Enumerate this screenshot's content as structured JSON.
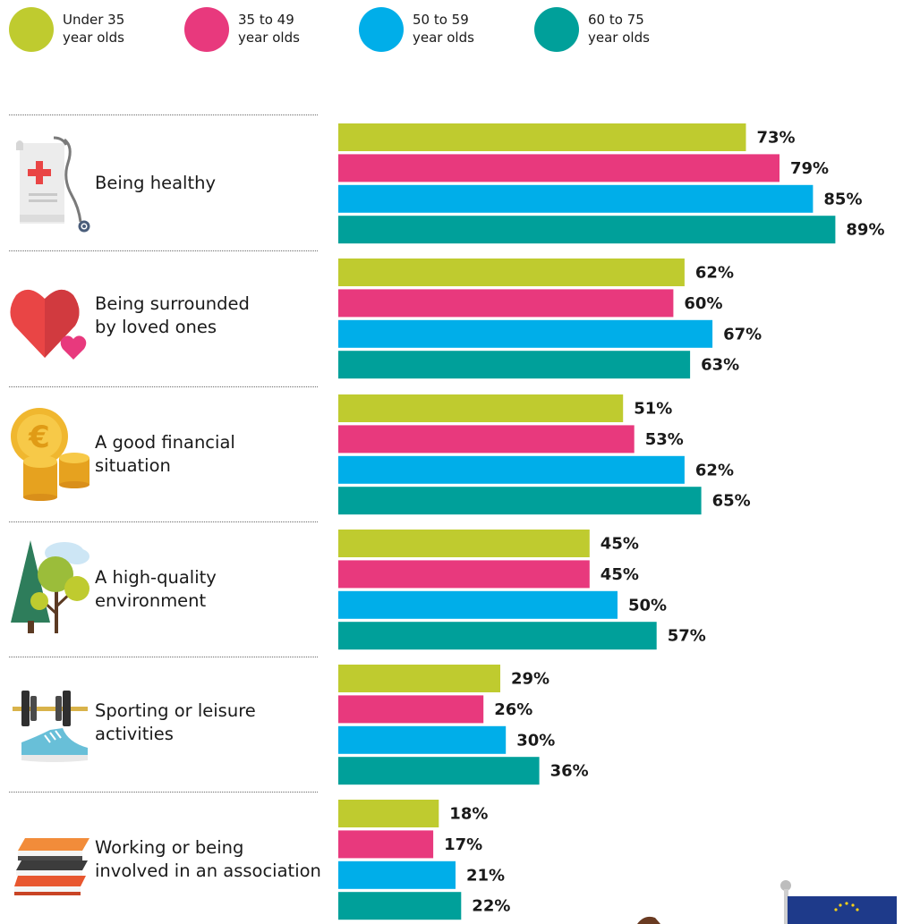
{
  "legend": [
    {
      "line1": "Under 35",
      "line2": "year olds",
      "color": "#bfcb2f"
    },
    {
      "line1": "35 to 49",
      "line2": "year olds",
      "color": "#e8397d"
    },
    {
      "line1": "50 to 59",
      "line2": "year olds",
      "color": "#00aee9"
    },
    {
      "line1": "60 to 75",
      "line2": "year olds",
      "color": "#00a09a"
    }
  ],
  "icons": [
    "medical-certificate-stethoscope-icon",
    "hearts-icon",
    "euro-coins-icon",
    "trees-cloud-icon",
    "dumbbell-sneaker-icon",
    "books-icon"
  ],
  "chart_data": {
    "type": "bar",
    "orientation": "horizontal",
    "categories": [
      [
        "Being healthy"
      ],
      [
        "Being surrounded",
        "by loved ones"
      ],
      [
        "A good financial",
        "situation"
      ],
      [
        "A high-quality",
        "environment"
      ],
      [
        "Sporting or leisure",
        "activities"
      ],
      [
        "Working or being",
        "involved in an association"
      ]
    ],
    "series": [
      {
        "name": "Under 35 year olds",
        "color": "#bfcb2f",
        "values": [
          73,
          62,
          51,
          45,
          29,
          18
        ]
      },
      {
        "name": "35 to 49 year olds",
        "color": "#e8397d",
        "values": [
          79,
          60,
          53,
          45,
          26,
          17
        ]
      },
      {
        "name": "50 to 59 year olds",
        "color": "#00aee9",
        "values": [
          85,
          67,
          62,
          50,
          30,
          21
        ]
      },
      {
        "name": "60 to 75 year olds",
        "color": "#00a09a",
        "values": [
          89,
          63,
          65,
          57,
          36,
          22
        ]
      }
    ],
    "value_suffix": "%",
    "xlim": [
      0,
      100
    ],
    "grid": false,
    "legend_position": "top"
  }
}
